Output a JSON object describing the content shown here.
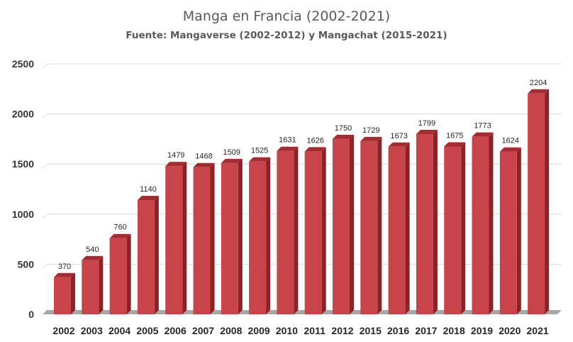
{
  "chart_data": {
    "type": "bar",
    "title": "Manga en Francia (2002-2021)",
    "subtitle": "Fuente: Mangaverse (2002-2012) y Mangachat (2015-2021)",
    "categories": [
      "2002",
      "2003",
      "2004",
      "2005",
      "2006",
      "2007",
      "2008",
      "2009",
      "2010",
      "2011",
      "2012",
      "2015",
      "2016",
      "2017",
      "2018",
      "2019",
      "2020",
      "2021"
    ],
    "values": [
      370,
      540,
      760,
      1140,
      1479,
      1468,
      1509,
      1525,
      1631,
      1626,
      1750,
      1729,
      1673,
      1799,
      1675,
      1773,
      1624,
      2204
    ],
    "ylim": [
      0,
      2500
    ],
    "yticks": [
      0,
      500,
      1000,
      1500,
      2000,
      2500
    ],
    "grid": true,
    "legend": "none",
    "style": "3d-column",
    "colors": {
      "bar_front": "#c9434a",
      "bar_side": "#8b2226",
      "bar_top": "#a12d32",
      "gridline": "#d9d9d9",
      "floor": "#a6a6a6"
    }
  }
}
